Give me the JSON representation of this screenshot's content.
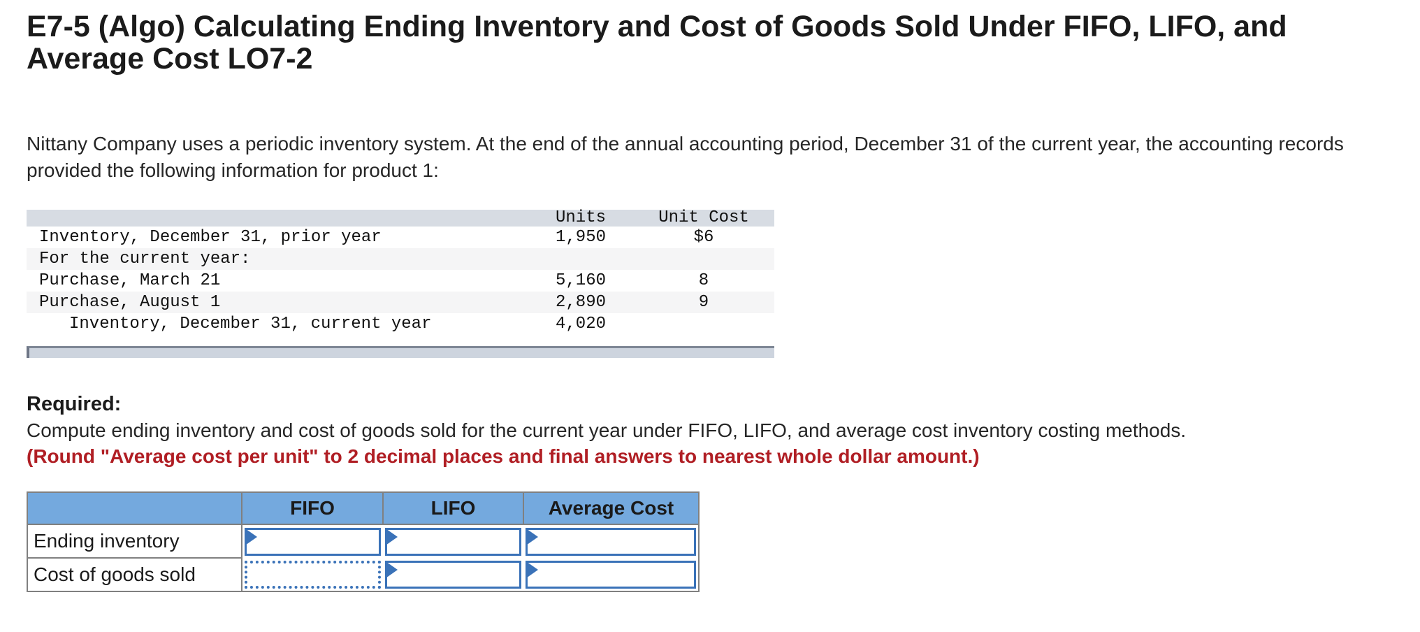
{
  "page": {
    "title": "E7-5 (Algo) Calculating Ending Inventory and Cost of Goods Sold Under FIFO, LIFO, and Average Cost LO7-2",
    "intro": "Nittany Company uses a periodic inventory system. At the end of the annual accounting period, December 31 of the current year, the accounting records provided the following information for product 1:"
  },
  "inventory_table": {
    "columns": [
      "",
      "Units",
      "Unit Cost"
    ],
    "rows": [
      {
        "label": "Inventory, December 31, prior year",
        "units": "1,950",
        "unit_cost": "$6",
        "indent": false
      },
      {
        "label": "For the current year:",
        "units": "",
        "unit_cost": "",
        "indent": false
      },
      {
        "label": "Purchase, March 21",
        "units": "5,160",
        "unit_cost": "8",
        "indent": false
      },
      {
        "label": "Purchase, August 1",
        "units": "2,890",
        "unit_cost": "9",
        "indent": false
      },
      {
        "label": "Inventory, December 31, current year",
        "units": "4,020",
        "unit_cost": "",
        "indent": true
      }
    ]
  },
  "required": {
    "heading": "Required:",
    "instruction": "Compute ending inventory and cost of goods sold for the current year under FIFO, LIFO, and average cost inventory costing methods.",
    "note": "(Round \"Average cost per unit\" to 2 decimal places and final answers to nearest whole dollar amount.)"
  },
  "answer_table": {
    "columns": [
      "FIFO",
      "LIFO",
      "Average Cost"
    ],
    "rows": [
      {
        "label": "Ending inventory",
        "cells": [
          {
            "column": "FIFO",
            "value": "",
            "selected": false,
            "marker": true
          },
          {
            "column": "LIFO",
            "value": "",
            "selected": false,
            "marker": true
          },
          {
            "column": "Average Cost",
            "value": "",
            "selected": false,
            "marker": true
          }
        ]
      },
      {
        "label": "Cost of goods sold",
        "cells": [
          {
            "column": "FIFO",
            "value": "",
            "selected": true,
            "marker": false
          },
          {
            "column": "LIFO",
            "value": "",
            "selected": false,
            "marker": true
          },
          {
            "column": "Average Cost",
            "value": "",
            "selected": false,
            "marker": true
          }
        ]
      }
    ]
  },
  "colors": {
    "answer_header_bg": "#74a9de",
    "input_border_blue": "#3a72b8",
    "grid_border_gray": "#808080",
    "inventory_header_bg": "#d7dce3",
    "row_stripe_bg": "#f5f5f6",
    "scrollbar_track": "#cdd4de",
    "note_red": "#b01e24"
  }
}
